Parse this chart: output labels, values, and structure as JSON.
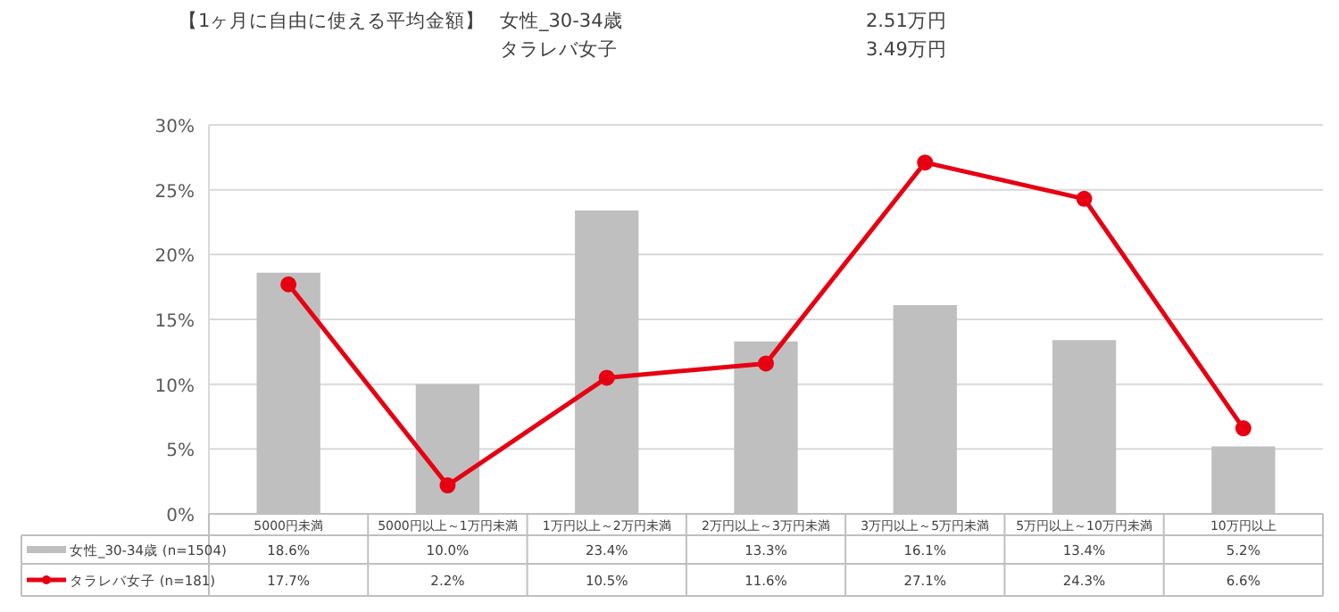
{
  "chart_data": {
    "type": "bar",
    "annotations": [
      "【1ヶ月に自由に使える平均金額】",
      "女性_30-34歳",
      "2.51万円",
      "タラレバ女子",
      "3.49万円"
    ],
    "categories": [
      "5000円未満",
      "5000円以上～1万円未満",
      "1万円以上～2万円未満",
      "2万円以上～3万円未満",
      "3万円以上～5万円未満",
      "5万円以上～10万円未満",
      "10万円以上"
    ],
    "series": [
      {
        "name": "女性_30-34歳 (n=1504)",
        "color": "#bfbfbf",
        "values": [
          18.6,
          10.0,
          23.4,
          13.3,
          16.1,
          13.4,
          5.2
        ],
        "value_labels": [
          "18.6%",
          "10.0%",
          "23.4%",
          "13.3%",
          "16.1%",
          "13.4%",
          "5.2%"
        ]
      },
      {
        "name": "タラレバ女子 (n=181)",
        "type": "line",
        "color": "#e60012",
        "marker": "circle",
        "line_style": "solid",
        "values": [
          17.7,
          2.2,
          10.5,
          11.6,
          27.1,
          24.3,
          6.6
        ],
        "value_labels": [
          "17.7%",
          "2.2%",
          "10.5%",
          "11.6%",
          "27.1%",
          "24.3%",
          "6.6%"
        ]
      }
    ],
    "ylim": [
      0,
      30
    ],
    "yticks": [
      {
        "value": 0,
        "label": "0%"
      },
      {
        "value": 5,
        "label": "5%"
      },
      {
        "value": 10,
        "label": "10%"
      },
      {
        "value": 15,
        "label": "15%"
      },
      {
        "value": 20,
        "label": "20%"
      },
      {
        "value": 25,
        "label": "25%"
      },
      {
        "value": 30,
        "label": "30%"
      }
    ],
    "grid": "y",
    "legend": "bottom"
  }
}
